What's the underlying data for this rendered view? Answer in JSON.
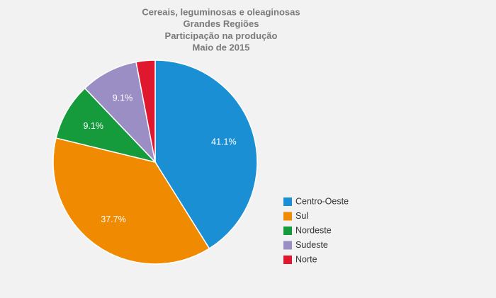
{
  "chart_data": {
    "type": "pie",
    "title": [
      "Cereais, leguminosas e oleaginosas",
      "Grandes Regiões",
      "Participação na produção",
      "Maio de 2015"
    ],
    "categories": [
      "Centro-Oeste",
      "Sul",
      "Nordeste",
      "Sudeste",
      "Norte"
    ],
    "values": [
      41.1,
      37.7,
      9.1,
      9.1,
      3.0
    ],
    "value_labels": [
      "41.1%",
      "37.7%",
      "9.1%",
      "9.1%",
      null
    ],
    "colors": [
      "#1a8fd4",
      "#f08a00",
      "#159a3c",
      "#9a8ec4",
      "#e0182f"
    ],
    "legend": "right"
  }
}
